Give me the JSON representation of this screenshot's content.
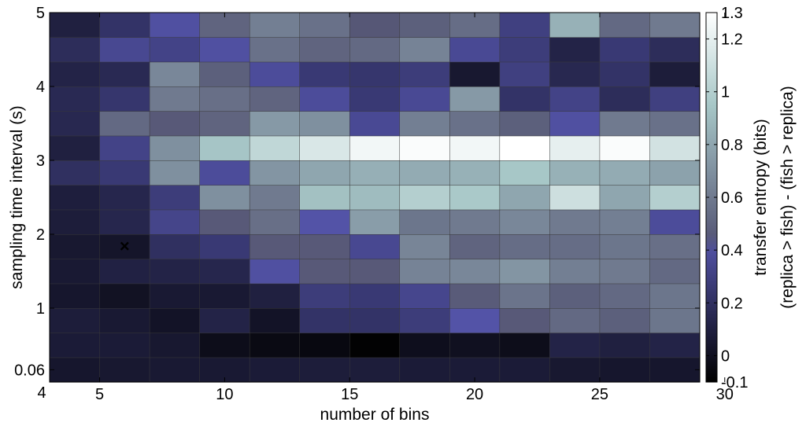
{
  "chart_data": {
    "type": "heatmap",
    "title": "",
    "xlabel": "number of bins",
    "ylabel": "sampling time interval (s)",
    "colorbar_label_line1": "transfer entropy (bits)",
    "colorbar_label_line2": "(replica > fish) - (fish > replica)",
    "x_corner_label": "4",
    "x_ticks": [
      {
        "label": "5",
        "value": 5
      },
      {
        "label": "10",
        "value": 10
      },
      {
        "label": "15",
        "value": 15
      },
      {
        "label": "20",
        "value": 20
      },
      {
        "label": "25",
        "value": 25
      },
      {
        "label": "30",
        "value": 30
      }
    ],
    "y_ticks": [
      {
        "label": "0.06",
        "row": 0
      },
      {
        "label": "1",
        "row": 2.5
      },
      {
        "label": "2",
        "row": 5.5
      },
      {
        "label": "3",
        "row": 8.5
      },
      {
        "label": "4",
        "row": 11.5
      },
      {
        "label": "5",
        "row": 14.5
      }
    ],
    "colorbar_ticks": [
      "-0.1",
      "0",
      "0.2",
      "0.4",
      "0.6",
      "0.8",
      "1",
      "1.2",
      "1.3"
    ],
    "colorbar_tick_values": [
      -0.1,
      0,
      0.2,
      0.4,
      0.6,
      0.8,
      1.0,
      1.2,
      1.3
    ],
    "zlim": [
      -0.1,
      1.3
    ],
    "colormap": "bone",
    "x_cells": [
      4,
      6,
      8,
      10,
      12,
      14,
      16,
      18,
      20,
      22,
      24,
      26,
      28
    ],
    "rows_bottom_to_top": [
      [
        0.04,
        0.05,
        0.06,
        0.06,
        0.07,
        0.08,
        0.08,
        0.07,
        0.07,
        0.07,
        0.05,
        0.04,
        0.04
      ],
      [
        0.07,
        0.07,
        0.05,
        -0.02,
        -0.04,
        -0.05,
        -0.09,
        -0.01,
        0.0,
        -0.02,
        0.12,
        0.1,
        0.12
      ],
      [
        0.08,
        0.06,
        0.02,
        0.12,
        0.02,
        0.22,
        0.22,
        0.28,
        0.42,
        0.45,
        0.52,
        0.48,
        0.58
      ],
      [
        0.04,
        0.01,
        0.06,
        0.06,
        0.1,
        0.28,
        0.26,
        0.34,
        0.46,
        0.57,
        0.48,
        0.52,
        0.58
      ],
      [
        0.06,
        0.11,
        0.12,
        0.14,
        0.4,
        0.45,
        0.45,
        0.64,
        0.66,
        0.72,
        0.62,
        0.6,
        0.52
      ],
      [
        0.05,
        0.03,
        0.2,
        0.26,
        0.45,
        0.45,
        0.35,
        0.65,
        0.5,
        0.54,
        0.54,
        0.58,
        0.55
      ],
      [
        0.08,
        0.14,
        0.33,
        0.45,
        0.55,
        0.42,
        0.76,
        0.58,
        0.6,
        0.66,
        0.6,
        0.62,
        0.38
      ],
      [
        0.09,
        0.14,
        0.28,
        0.7,
        0.6,
        0.92,
        0.9,
        1.0,
        0.96,
        0.8,
        1.1,
        0.8,
        1.0
      ],
      [
        0.2,
        0.26,
        0.7,
        0.38,
        0.72,
        0.8,
        0.84,
        0.82,
        0.85,
        0.95,
        0.85,
        0.82,
        0.78
      ],
      [
        0.1,
        0.32,
        0.7,
        0.94,
        1.05,
        1.15,
        1.25,
        1.28,
        1.25,
        1.3,
        1.2,
        1.28,
        1.12
      ],
      [
        0.15,
        0.52,
        0.45,
        0.5,
        0.74,
        0.7,
        0.36,
        0.62,
        0.56,
        0.48,
        0.4,
        0.6,
        0.56
      ],
      [
        0.16,
        0.24,
        0.6,
        0.55,
        0.5,
        0.38,
        0.26,
        0.36,
        0.74,
        0.22,
        0.32,
        0.18,
        0.3
      ],
      [
        0.12,
        0.16,
        0.66,
        0.48,
        0.38,
        0.26,
        0.24,
        0.28,
        0.05,
        0.3,
        0.15,
        0.22,
        0.08
      ],
      [
        0.18,
        0.35,
        0.32,
        0.4,
        0.56,
        0.5,
        0.52,
        0.64,
        0.36,
        0.28,
        0.12,
        0.26,
        0.18
      ],
      [
        0.1,
        0.22,
        0.4,
        0.5,
        0.62,
        0.56,
        0.44,
        0.48,
        0.54,
        0.3,
        0.85,
        0.52,
        0.6
      ]
    ],
    "marker": {
      "symbol": "×",
      "color": "#e02020",
      "col": 1,
      "row": 5
    }
  }
}
